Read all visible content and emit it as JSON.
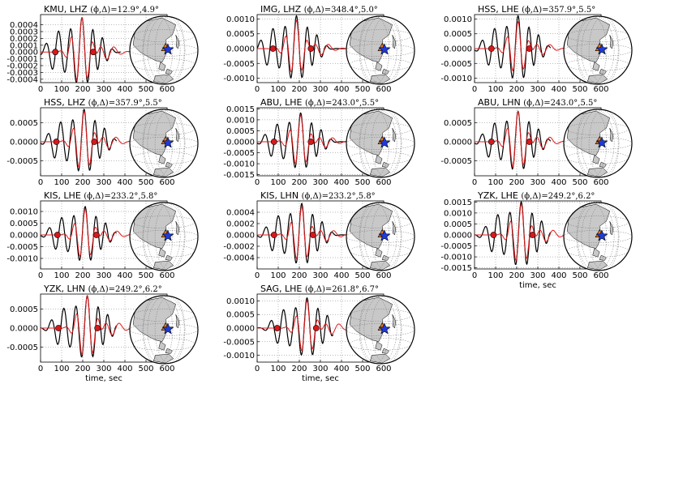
{
  "figure": {
    "x_axis_label": "time, sec",
    "colors": {
      "observed": "#000000",
      "synthetic": "#e41a1c",
      "marker_fill": "#d7191c",
      "star": "#1f3bd6",
      "land": "#c8c8c8",
      "grid": "#777777"
    },
    "icons": [
      "globe-map-icon",
      "epicenter-star-icon",
      "station-triangle-icon"
    ]
  },
  "chart_data": [
    {
      "type": "line",
      "title": "KMU, LHZ",
      "phi_delta": "=12.9°,4.9°",
      "xlim": [
        0,
        600
      ],
      "ylim": [
        -0.00045,
        0.00055
      ],
      "xticks": [
        "0",
        "100",
        "200",
        "300",
        "400",
        "500",
        "600"
      ],
      "yticks": [
        "-0.0004",
        "-0.0003",
        "-0.0002",
        "-0.0001",
        "0.0000",
        "0.0001",
        "0.0002",
        "0.0003",
        "0.0004"
      ],
      "ytick_values": [
        -0.0004,
        -0.0003,
        -0.0002,
        -0.0001,
        0,
        0.0001,
        0.0002,
        0.0003,
        0.0004
      ],
      "x_extent": [
        0,
        380
      ],
      "markers": [
        70,
        250
      ],
      "wave_center": 195,
      "amp_obs": 0.0005,
      "amp_syn": 0.0005,
      "show_xlabel": false
    },
    {
      "type": "line",
      "title": "IMG, LHZ",
      "phi_delta": "=348.4°,5.0°",
      "xlim": [
        0,
        600
      ],
      "ylim": [
        -0.00115,
        0.00115
      ],
      "xticks": [
        "0",
        "100",
        "200",
        "300",
        "400",
        "500",
        "600"
      ],
      "yticks": [
        "-0.0010",
        "-0.0005",
        "0.0000",
        "0.0005",
        "0.0010"
      ],
      "ytick_values": [
        -0.001,
        -0.0005,
        0,
        0.0005,
        0.001
      ],
      "x_extent": [
        0,
        420
      ],
      "markers": [
        75,
        255
      ],
      "wave_center": 185,
      "amp_obs": 0.0011,
      "amp_syn": 0.00095,
      "show_xlabel": false
    },
    {
      "type": "line",
      "title": "HSS, LHE",
      "phi_delta": "=357.9°,5.5°",
      "xlim": [
        0,
        600
      ],
      "ylim": [
        -0.00115,
        0.00115
      ],
      "xticks": [
        "0",
        "100",
        "200",
        "300",
        "400",
        "500",
        "600"
      ],
      "yticks": [
        "-0.0010",
        "-0.0005",
        "0.0000",
        "0.0005",
        "0.0010"
      ],
      "ytick_values": [
        -0.001,
        -0.0005,
        0,
        0.0005,
        0.001
      ],
      "x_extent": [
        0,
        360
      ],
      "markers": [
        80,
        260
      ],
      "wave_center": 205,
      "amp_obs": 0.0011,
      "amp_syn": 0.0009,
      "show_xlabel": false
    },
    {
      "type": "line",
      "title": "HSS, LHZ",
      "phi_delta": "=357.9°,5.5°",
      "xlim": [
        0,
        600
      ],
      "ylim": [
        -0.0009,
        0.0009
      ],
      "xticks": [
        "0",
        "100",
        "200",
        "300",
        "400",
        "500",
        "600"
      ],
      "yticks": [
        "-0.0005",
        "0.0000",
        "0.0005"
      ],
      "ytick_values": [
        -0.0005,
        0,
        0.0005
      ],
      "x_extent": [
        0,
        360
      ],
      "markers": [
        75,
        255
      ],
      "wave_center": 205,
      "amp_obs": 0.00085,
      "amp_syn": 0.0008,
      "show_xlabel": false
    },
    {
      "type": "line",
      "title": "ABU, LHE",
      "phi_delta": "=243.0°,5.5°",
      "xlim": [
        0,
        600
      ],
      "ylim": [
        -0.00155,
        0.00155
      ],
      "xticks": [
        "0",
        "100",
        "200",
        "300",
        "400",
        "500",
        "600"
      ],
      "yticks": [
        "-0.0015",
        "-0.0010",
        "-0.0005",
        "0.0000",
        "0.0005",
        "0.0010",
        "0.0015"
      ],
      "ytick_values": [
        -0.0015,
        -0.001,
        -0.0005,
        0,
        0.0005,
        0.001,
        0.0015
      ],
      "x_extent": [
        0,
        420
      ],
      "markers": [
        80,
        255
      ],
      "wave_center": 205,
      "amp_obs": 0.0013,
      "amp_syn": 0.0012,
      "show_xlabel": false
    },
    {
      "type": "line",
      "title": "ABU, LHN",
      "phi_delta": "=243.0°,5.5°",
      "xlim": [
        0,
        600
      ],
      "ylim": [
        -0.0009,
        0.0009
      ],
      "xticks": [
        "0",
        "100",
        "200",
        "300",
        "400",
        "500",
        "600"
      ],
      "yticks": [
        "-0.0005",
        "0.0000",
        "0.0005"
      ],
      "ytick_values": [
        -0.0005,
        0,
        0.0005
      ],
      "x_extent": [
        0,
        360
      ],
      "markers": [
        80,
        260
      ],
      "wave_center": 205,
      "amp_obs": 0.0008,
      "amp_syn": 0.0008,
      "show_xlabel": false
    },
    {
      "type": "line",
      "title": "KIS, LHE",
      "phi_delta": "=233.2°,5.8°",
      "xlim": [
        0,
        600
      ],
      "ylim": [
        -0.00145,
        0.00145
      ],
      "xticks": [
        "0",
        "100",
        "200",
        "300",
        "400",
        "500",
        "600"
      ],
      "yticks": [
        "-0.0010",
        "-0.0005",
        "0.0000",
        "0.0005",
        "0.0010"
      ],
      "ytick_values": [
        -0.001,
        -0.0005,
        0,
        0.0005,
        0.001
      ],
      "x_extent": [
        0,
        360
      ],
      "markers": [
        80,
        265
      ],
      "wave_center": 210,
      "amp_obs": 0.0012,
      "amp_syn": 0.0011,
      "show_xlabel": false
    },
    {
      "type": "line",
      "title": "KIS, LHN",
      "phi_delta": "=233.2°,5.8°",
      "xlim": [
        0,
        600
      ],
      "ylim": [
        -0.0006,
        0.0006
      ],
      "xticks": [
        "0",
        "100",
        "200",
        "300",
        "400",
        "500",
        "600"
      ],
      "yticks": [
        "-0.0004",
        "-0.0002",
        "0.0000",
        "0.0002",
        "0.0004"
      ],
      "ytick_values": [
        -0.0004,
        -0.0002,
        0,
        0.0002,
        0.0004
      ],
      "x_extent": [
        0,
        420
      ],
      "markers": [
        80,
        265
      ],
      "wave_center": 210,
      "amp_obs": 0.00055,
      "amp_syn": 0.0005,
      "show_xlabel": false
    },
    {
      "type": "line",
      "title": "YZK, LHE",
      "phi_delta": "=249.2°,6.2°",
      "xlim": [
        0,
        600
      ],
      "ylim": [
        -0.00155,
        0.00155
      ],
      "xticks": [
        "0",
        "100",
        "200",
        "300",
        "400",
        "500",
        "600"
      ],
      "yticks": [
        "-0.0015",
        "-0.0010",
        "-0.0005",
        "0.0000",
        "0.0005",
        "0.0010",
        "0.0015"
      ],
      "ytick_values": [
        -0.0015,
        -0.001,
        -0.0005,
        0,
        0.0005,
        0.001,
        0.0015
      ],
      "x_extent": [
        0,
        360
      ],
      "markers": [
        90,
        275
      ],
      "wave_center": 220,
      "amp_obs": 0.0015,
      "amp_syn": 0.0014,
      "show_xlabel": true
    },
    {
      "type": "line",
      "title": "YZK, LHN",
      "phi_delta": "=249.2°,6.2°",
      "xlim": [
        0,
        600
      ],
      "ylim": [
        -0.0009,
        0.0009
      ],
      "xticks": [
        "0",
        "100",
        "200",
        "300",
        "400",
        "500",
        "600"
      ],
      "yticks": [
        "-0.0005",
        "0.0000",
        "0.0005"
      ],
      "ytick_values": [
        -0.0005,
        0,
        0.0005
      ],
      "x_extent": [
        0,
        360
      ],
      "markers": [
        85,
        270
      ],
      "wave_center": 220,
      "amp_obs": 0.00085,
      "amp_syn": 0.00085,
      "show_xlabel": true
    },
    {
      "type": "line",
      "title": "SAG, LHE",
      "phi_delta": "=261.8°,6.7°",
      "xlim": [
        0,
        600
      ],
      "ylim": [
        -0.00125,
        0.00125
      ],
      "xticks": [
        "0",
        "100",
        "200",
        "300",
        "400",
        "500",
        "600"
      ],
      "yticks": [
        "-0.0010",
        "-0.0005",
        "0.0000",
        "0.0005",
        "0.0010"
      ],
      "ytick_values": [
        -0.001,
        -0.0005,
        0,
        0.0005,
        0.001
      ],
      "x_extent": [
        0,
        360
      ],
      "markers": [
        95,
        280
      ],
      "wave_center": 235,
      "amp_obs": 0.0011,
      "amp_syn": 0.001,
      "show_xlabel": true
    }
  ]
}
